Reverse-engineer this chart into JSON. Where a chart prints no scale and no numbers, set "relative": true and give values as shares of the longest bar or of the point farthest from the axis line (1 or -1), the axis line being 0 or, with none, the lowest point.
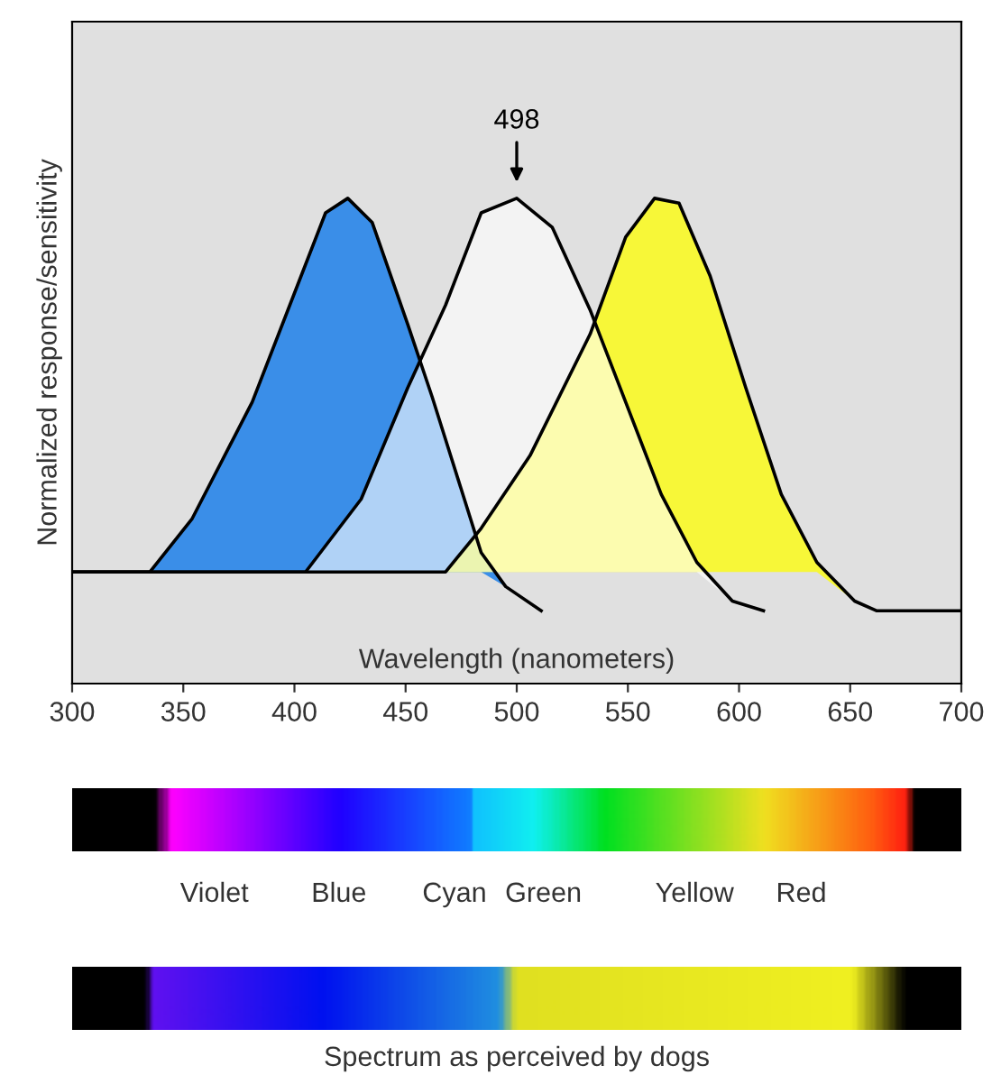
{
  "chart_data": {
    "type": "area",
    "relative": true,
    "ylabel": "Normalized response/sensitivity",
    "xlabel": "Wavelength (nanometers)",
    "xlim": [
      300,
      700
    ],
    "xticks": [
      300,
      350,
      400,
      450,
      500,
      550,
      600,
      650,
      700
    ],
    "tick_labels": "x",
    "grid": false,
    "legend": false,
    "series": [
      {
        "color": "#3a8ee8",
        "x": [
          300,
          335,
          354,
          381,
          403,
          414,
          424,
          435,
          451,
          462,
          473,
          484,
          495,
          511
        ],
        "values": [
          0.23,
          0.23,
          0.34,
          0.58,
          0.84,
          0.97,
          1.0,
          0.95,
          0.74,
          0.59,
          0.43,
          0.27,
          0.2,
          0.15
        ]
      },
      {
        "color": "#ffff00",
        "x": [
          300,
          468,
          484,
          506,
          533,
          549,
          562,
          573,
          587,
          603,
          619,
          635,
          652,
          662,
          700
        ],
        "values": [
          0.23,
          0.23,
          0.32,
          0.47,
          0.72,
          0.92,
          1.0,
          0.99,
          0.84,
          0.61,
          0.39,
          0.25,
          0.17,
          0.15,
          0.15
        ]
      },
      {
        "color": "#ffffff",
        "x": [
          300,
          405,
          430,
          451,
          468,
          484,
          500,
          516,
          533,
          549,
          565,
          581,
          597,
          611
        ],
        "values": [
          0.23,
          0.23,
          0.38,
          0.61,
          0.78,
          0.97,
          1.0,
          0.94,
          0.77,
          0.58,
          0.39,
          0.25,
          0.17,
          0.15
        ]
      }
    ],
    "annotations": [
      "498",
      "Violet",
      "Blue",
      "Cyan",
      "Green",
      "Yellow",
      "Red",
      "Spectrum as perceived by dogs"
    ]
  }
}
